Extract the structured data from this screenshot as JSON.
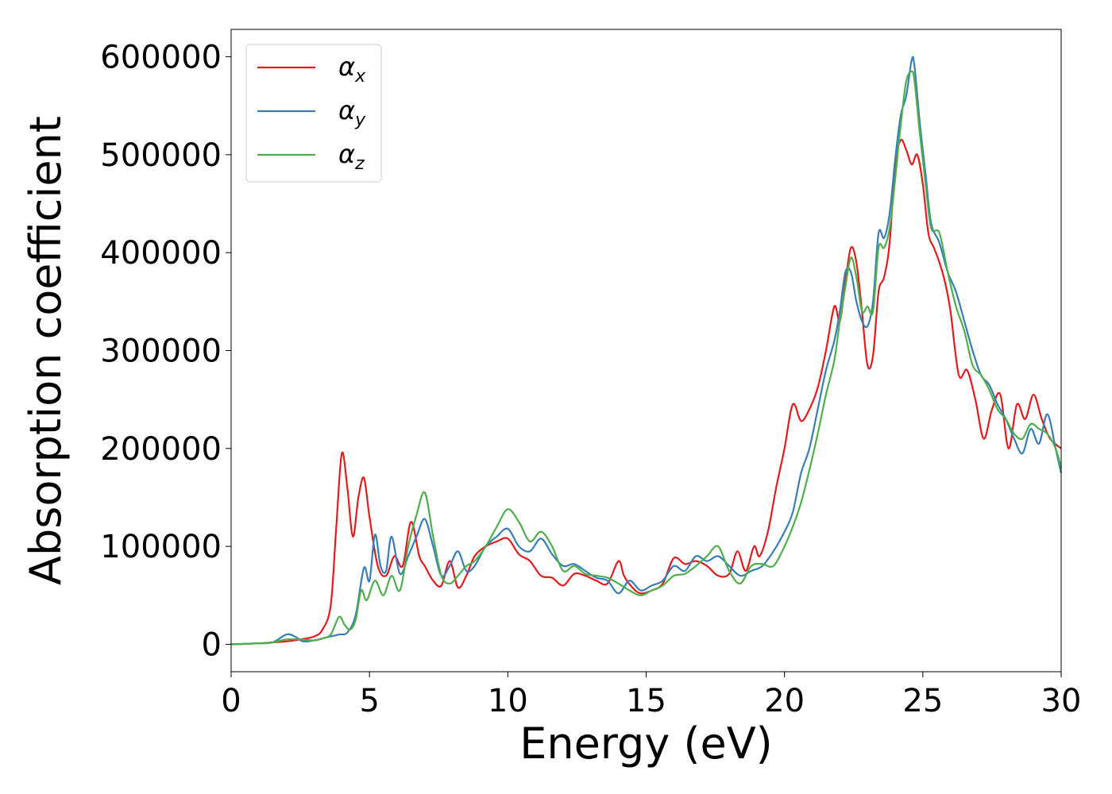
{
  "chart_data": {
    "type": "line",
    "title": "",
    "xlabel": "Energy (eV)",
    "ylabel": "Absorption coefficient",
    "xlim": [
      0,
      30
    ],
    "ylim": [
      -28000,
      628000
    ],
    "xticks": [
      0,
      5,
      10,
      15,
      20,
      25,
      30
    ],
    "yticks": [
      0,
      100000,
      200000,
      300000,
      400000,
      500000,
      600000
    ],
    "grid": false,
    "legend_position": "top-left",
    "series": [
      {
        "name": "αx",
        "legend_base": "α",
        "legend_sub": "x",
        "color": "#e41a1c",
        "x": [
          0,
          1,
          1.5,
          2,
          2.5,
          3,
          3.3,
          3.6,
          3.8,
          4.0,
          4.2,
          4.4,
          4.6,
          4.8,
          5.0,
          5.3,
          5.6,
          5.9,
          6.2,
          6.5,
          6.8,
          7.0,
          7.3,
          7.6,
          7.9,
          8.2,
          8.5,
          8.8,
          9.2,
          9.6,
          10.0,
          10.4,
          10.8,
          11.2,
          11.6,
          12.0,
          12.4,
          12.8,
          13.2,
          13.6,
          14.0,
          14.2,
          14.5,
          14.8,
          15.2,
          15.6,
          16.0,
          16.4,
          16.8,
          17.2,
          17.6,
          18.0,
          18.3,
          18.6,
          18.9,
          19.1,
          19.4,
          19.7,
          20.0,
          20.3,
          20.6,
          20.9,
          21.2,
          21.5,
          21.8,
          22.0,
          22.2,
          22.4,
          22.6,
          22.8,
          23.0,
          23.2,
          23.4,
          23.6,
          23.8,
          24.0,
          24.2,
          24.4,
          24.6,
          24.8,
          25.0,
          25.2,
          25.4,
          25.6,
          25.8,
          26.0,
          26.3,
          26.6,
          26.9,
          27.2,
          27.5,
          27.8,
          28.1,
          28.4,
          28.7,
          29.0,
          29.3,
          29.6,
          30.0
        ],
        "y": [
          0,
          1000,
          2000,
          3000,
          5000,
          8000,
          15000,
          40000,
          120000,
          195000,
          160000,
          110000,
          150000,
          170000,
          130000,
          80000,
          70000,
          90000,
          80000,
          125000,
          90000,
          80000,
          65000,
          60000,
          85000,
          58000,
          70000,
          90000,
          100000,
          105000,
          108000,
          92000,
          85000,
          70000,
          68000,
          60000,
          72000,
          70000,
          65000,
          62000,
          85000,
          70000,
          58000,
          52000,
          55000,
          62000,
          88000,
          82000,
          85000,
          80000,
          70000,
          72000,
          95000,
          75000,
          100000,
          90000,
          115000,
          160000,
          200000,
          245000,
          228000,
          240000,
          262000,
          300000,
          345000,
          330000,
          370000,
          405000,
          390000,
          340000,
          285000,
          295000,
          360000,
          375000,
          410000,
          490000,
          515000,
          505000,
          490000,
          500000,
          470000,
          420000,
          405000,
          390000,
          370000,
          340000,
          275000,
          280000,
          250000,
          210000,
          240000,
          255000,
          200000,
          245000,
          230000,
          255000,
          230000,
          210000,
          200000
        ]
      },
      {
        "name": "αy",
        "legend_base": "α",
        "legend_sub": "y",
        "color": "#377eb8",
        "x": [
          0,
          1,
          1.5,
          2,
          2.3,
          2.6,
          3,
          3.3,
          3.6,
          3.9,
          4.2,
          4.5,
          4.8,
          5.0,
          5.2,
          5.4,
          5.6,
          5.8,
          6.1,
          6.4,
          6.7,
          7.0,
          7.3,
          7.6,
          7.9,
          8.2,
          8.5,
          8.8,
          9.2,
          9.6,
          10.0,
          10.4,
          10.8,
          11.2,
          11.6,
          12.0,
          12.4,
          12.8,
          13.2,
          13.6,
          14.0,
          14.4,
          14.8,
          15.2,
          15.6,
          16.0,
          16.4,
          16.8,
          17.2,
          17.6,
          18.0,
          18.4,
          18.8,
          19.2,
          19.6,
          20.0,
          20.3,
          20.6,
          20.9,
          21.2,
          21.5,
          21.8,
          22.0,
          22.2,
          22.4,
          22.6,
          22.8,
          23.0,
          23.2,
          23.4,
          23.6,
          23.8,
          24.0,
          24.2,
          24.4,
          24.6,
          24.7,
          24.9,
          25.1,
          25.3,
          25.6,
          25.9,
          26.2,
          26.5,
          26.8,
          27.1,
          27.4,
          27.7,
          28.0,
          28.3,
          28.6,
          28.9,
          29.2,
          29.5,
          29.8,
          30.0
        ],
        "y": [
          0,
          1000,
          2000,
          10000,
          8000,
          3000,
          4000,
          6000,
          8000,
          10000,
          12000,
          30000,
          78000,
          65000,
          112000,
          80000,
          75000,
          110000,
          72000,
          90000,
          110000,
          128000,
          100000,
          70000,
          80000,
          95000,
          75000,
          80000,
          100000,
          110000,
          118000,
          100000,
          95000,
          108000,
          92000,
          80000,
          82000,
          75000,
          68000,
          65000,
          52000,
          65000,
          55000,
          60000,
          65000,
          80000,
          75000,
          90000,
          85000,
          90000,
          80000,
          70000,
          75000,
          80000,
          95000,
          115000,
          135000,
          175000,
          200000,
          240000,
          280000,
          310000,
          340000,
          380000,
          380000,
          350000,
          330000,
          325000,
          350000,
          420000,
          415000,
          440000,
          495000,
          540000,
          560000,
          597000,
          590000,
          530000,
          480000,
          430000,
          410000,
          380000,
          360000,
          330000,
          300000,
          275000,
          265000,
          245000,
          230000,
          210000,
          195000,
          220000,
          205000,
          235000,
          200000,
          175000
        ]
      },
      {
        "name": "αz",
        "legend_base": "α",
        "legend_sub": "z",
        "color": "#4daf4a",
        "x": [
          0,
          1,
          1.5,
          2,
          2.5,
          3,
          3.3,
          3.6,
          3.9,
          4.1,
          4.3,
          4.5,
          4.7,
          4.9,
          5.2,
          5.5,
          5.8,
          6.1,
          6.4,
          6.7,
          7.0,
          7.3,
          7.6,
          7.9,
          8.2,
          8.5,
          8.8,
          9.2,
          9.6,
          10.0,
          10.4,
          10.8,
          11.2,
          11.6,
          12.0,
          12.4,
          12.8,
          13.2,
          13.6,
          14.0,
          14.4,
          14.8,
          15.2,
          15.6,
          16.0,
          16.4,
          16.8,
          17.2,
          17.6,
          18.0,
          18.4,
          18.8,
          19.2,
          19.6,
          20.0,
          20.3,
          20.6,
          20.9,
          21.2,
          21.5,
          21.8,
          22.0,
          22.2,
          22.4,
          22.6,
          22.8,
          23.0,
          23.2,
          23.4,
          23.6,
          23.8,
          24.0,
          24.2,
          24.4,
          24.6,
          24.7,
          24.9,
          25.1,
          25.3,
          25.6,
          25.9,
          26.2,
          26.5,
          26.8,
          27.1,
          27.4,
          27.7,
          28.0,
          28.3,
          28.6,
          28.9,
          29.2,
          29.5,
          29.8,
          30.0
        ],
        "y": [
          0,
          1000,
          2000,
          5000,
          5000,
          4000,
          6000,
          10000,
          28000,
          20000,
          15000,
          25000,
          55000,
          45000,
          65000,
          50000,
          70000,
          55000,
          100000,
          132000,
          155000,
          110000,
          70000,
          62000,
          70000,
          80000,
          85000,
          100000,
          120000,
          138000,
          125000,
          105000,
          115000,
          100000,
          75000,
          80000,
          72000,
          70000,
          68000,
          62000,
          55000,
          50000,
          55000,
          60000,
          70000,
          72000,
          80000,
          90000,
          100000,
          75000,
          62000,
          80000,
          82000,
          80000,
          100000,
          120000,
          145000,
          178000,
          215000,
          255000,
          290000,
          330000,
          365000,
          395000,
          375000,
          340000,
          345000,
          340000,
          405000,
          405000,
          425000,
          475000,
          530000,
          575000,
          585000,
          575000,
          520000,
          470000,
          425000,
          420000,
          380000,
          345000,
          320000,
          285000,
          275000,
          260000,
          240000,
          230000,
          215000,
          210000,
          225000,
          220000,
          215000,
          200000,
          180000
        ]
      }
    ]
  }
}
